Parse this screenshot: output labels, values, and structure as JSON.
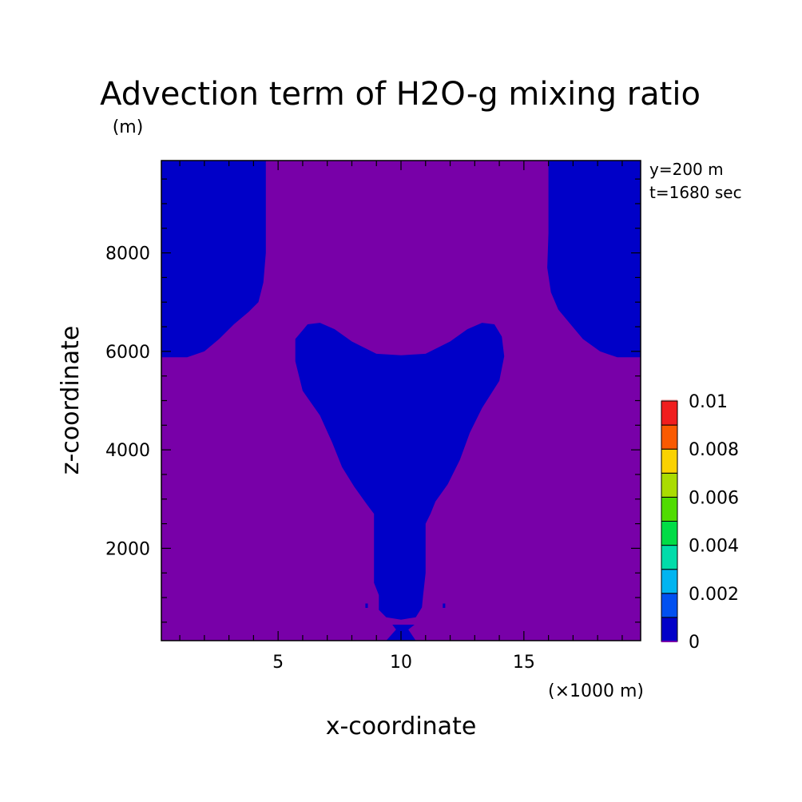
{
  "chart_data": {
    "type": "heatmap",
    "title": "Advection term of H2O-g mixing ratio",
    "xlabel": "x-coordinate",
    "ylabel": "z-coordinate",
    "x_unit": "(×1000 m)",
    "y_unit": "(m)",
    "annotations": [
      "y=200 m",
      "t=1680 sec"
    ],
    "xlim": [
      0.25,
      19.75
    ],
    "ylim": [
      125,
      9875
    ],
    "x_ticks": [
      5,
      10,
      15
    ],
    "x_tick_labels": [
      "5",
      "10",
      "15"
    ],
    "x_minor_step": 1,
    "y_ticks": [
      2000,
      4000,
      6000,
      8000
    ],
    "y_tick_labels": [
      "2000",
      "4000",
      "6000",
      "8000"
    ],
    "y_minor_step": 500,
    "grid": false,
    "background_color": "#7800a8",
    "colorbar": {
      "levels": [
        0,
        0.001,
        0.002,
        0.003,
        0.004,
        0.005,
        0.006,
        0.007,
        0.008,
        0.009,
        0.01
      ],
      "colors": [
        "#0000c8",
        "#0050f0",
        "#00b4f0",
        "#00dcaa",
        "#00dc46",
        "#50dc00",
        "#aadc00",
        "#fad200",
        "#fa5a00",
        "#f01e1e"
      ],
      "top_color": "#ffc8c8",
      "bottom_color": "#7800a8",
      "tick_values": [
        0,
        0.002,
        0.004,
        0.006,
        0.008,
        0.01
      ],
      "tick_labels": [
        "0",
        "0.002",
        "0.004",
        "0.006",
        "0.008",
        "0.01"
      ]
    },
    "regions": [
      {
        "name": "upper-left-region",
        "color": "#0000c8",
        "points": [
          [
            0.25,
            9875
          ],
          [
            4.5,
            9875
          ],
          [
            4.5,
            8000
          ],
          [
            4.4,
            7400
          ],
          [
            4.2,
            7000
          ],
          [
            3.8,
            6800
          ],
          [
            3.2,
            6550
          ],
          [
            2.6,
            6250
          ],
          [
            2.0,
            6000
          ],
          [
            1.3,
            5880
          ],
          [
            0.25,
            5880
          ]
        ]
      },
      {
        "name": "upper-right-region",
        "color": "#0000c8",
        "points": [
          [
            16.0,
            9875
          ],
          [
            19.75,
            9875
          ],
          [
            19.75,
            5880
          ],
          [
            18.8,
            5880
          ],
          [
            18.1,
            6000
          ],
          [
            17.4,
            6250
          ],
          [
            16.9,
            6550
          ],
          [
            16.4,
            6850
          ],
          [
            16.1,
            7200
          ],
          [
            15.95,
            7700
          ],
          [
            16.0,
            8400
          ]
        ]
      },
      {
        "name": "central-plume-region",
        "color": "#0000c8",
        "points": [
          [
            6.2,
            6550
          ],
          [
            6.7,
            6580
          ],
          [
            7.3,
            6450
          ],
          [
            8.0,
            6200
          ],
          [
            9.0,
            5950
          ],
          [
            10.0,
            5920
          ],
          [
            11.0,
            5950
          ],
          [
            12.0,
            6200
          ],
          [
            12.7,
            6450
          ],
          [
            13.3,
            6580
          ],
          [
            13.8,
            6550
          ],
          [
            14.1,
            6300
          ],
          [
            14.2,
            5900
          ],
          [
            14.0,
            5400
          ],
          [
            13.3,
            4850
          ],
          [
            12.8,
            4350
          ],
          [
            12.4,
            3800
          ],
          [
            11.9,
            3300
          ],
          [
            11.4,
            2950
          ],
          [
            11.2,
            2700
          ],
          [
            11.0,
            2500
          ],
          [
            11.0,
            1500
          ],
          [
            10.9,
            1050
          ],
          [
            10.85,
            800
          ],
          [
            10.6,
            600
          ],
          [
            10.0,
            550
          ],
          [
            9.4,
            600
          ],
          [
            9.1,
            750
          ],
          [
            9.1,
            1050
          ],
          [
            8.9,
            1300
          ],
          [
            8.9,
            2700
          ],
          [
            8.6,
            2900
          ],
          [
            8.1,
            3250
          ],
          [
            7.6,
            3650
          ],
          [
            7.2,
            4150
          ],
          [
            6.7,
            4700
          ],
          [
            6.0,
            5200
          ],
          [
            5.7,
            5800
          ],
          [
            5.7,
            6250
          ]
        ]
      },
      {
        "name": "surface-spike-region",
        "color": "#0000c8",
        "points": [
          [
            9.9,
            125
          ],
          [
            10.1,
            125
          ],
          [
            10.6,
            125
          ],
          [
            10.3,
            350
          ],
          [
            10.55,
            450
          ],
          [
            9.65,
            450
          ],
          [
            9.8,
            350
          ],
          [
            9.4,
            125
          ]
        ]
      },
      {
        "name": "left-speck-region",
        "color": "#0000c8",
        "points": [
          [
            8.55,
            880
          ],
          [
            8.65,
            880
          ],
          [
            8.65,
            790
          ],
          [
            8.55,
            790
          ]
        ]
      },
      {
        "name": "right-speck-region",
        "color": "#0000c8",
        "points": [
          [
            11.7,
            880
          ],
          [
            11.8,
            880
          ],
          [
            11.8,
            790
          ],
          [
            11.7,
            790
          ]
        ]
      }
    ]
  }
}
